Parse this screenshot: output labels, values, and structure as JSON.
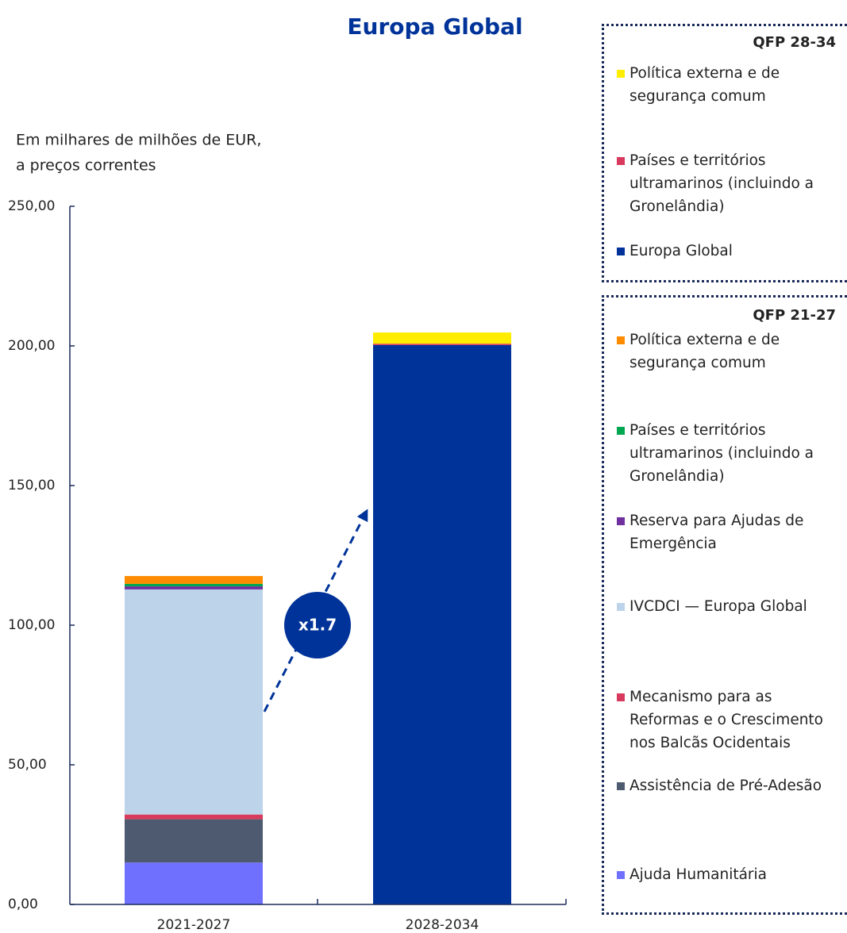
{
  "chart_data": {
    "type": "stacked-bar",
    "title": "Europa Global",
    "ylabel": [
      "Em milhares de milhões de EUR,",
      "a preços correntes"
    ],
    "annotation": "x1.7",
    "categories": [
      "2021-2027",
      "2028-2034"
    ],
    "ylim": [
      0,
      250
    ],
    "yticks": [
      {
        "value": 0,
        "label": "0,00"
      },
      {
        "value": 50,
        "label": "50,00"
      },
      {
        "value": 100,
        "label": "100,00"
      },
      {
        "value": 150,
        "label": "150,00"
      },
      {
        "value": 200,
        "label": "200,00"
      },
      {
        "value": 250,
        "label": "250,00"
      }
    ],
    "legend_groups": [
      {
        "title": "QFP 28-34",
        "series": [
          {
            "name": "Política externa e de segurança comum",
            "color": "#ffed00",
            "values": [
              null,
              4.0
            ]
          },
          {
            "name": "Países e territórios ultramarinos (incluindo a Gronelândia)",
            "color": "#d73a5c",
            "values": [
              null,
              0.5
            ]
          },
          {
            "name": "Europa Global",
            "color": "#003399",
            "values": [
              null,
              200.3
            ]
          }
        ]
      },
      {
        "title": "QFP 21-27",
        "series": [
          {
            "name": "Política externa e de segurança comum",
            "color": "#ff8c00",
            "values": [
              2.8,
              null
            ]
          },
          {
            "name": "Países e territórios ultramarinos (incluindo a Gronelândia)",
            "color": "#00a650",
            "values": [
              0.9,
              null
            ]
          },
          {
            "name": "Reserva para Ajudas de Emergência",
            "color": "#7030a0",
            "values": [
              1.1,
              null
            ]
          },
          {
            "name": "IVCDCI — Europa Global",
            "color": "#bdd3ea",
            "values": [
              80.6,
              null
            ]
          },
          {
            "name": "Mecanismo para as Reformas e o Crescimento nos Balcãs Ocidentais",
            "color": "#d73a5c",
            "values": [
              1.7,
              null
            ]
          },
          {
            "name": "Assistência de Pré-Adesão",
            "color": "#4d5a70",
            "values": [
              15.5,
              null
            ]
          },
          {
            "name": "Ajuda Humanitária",
            "color": "#7070ff",
            "values": [
              15.0,
              null
            ]
          }
        ]
      }
    ]
  }
}
